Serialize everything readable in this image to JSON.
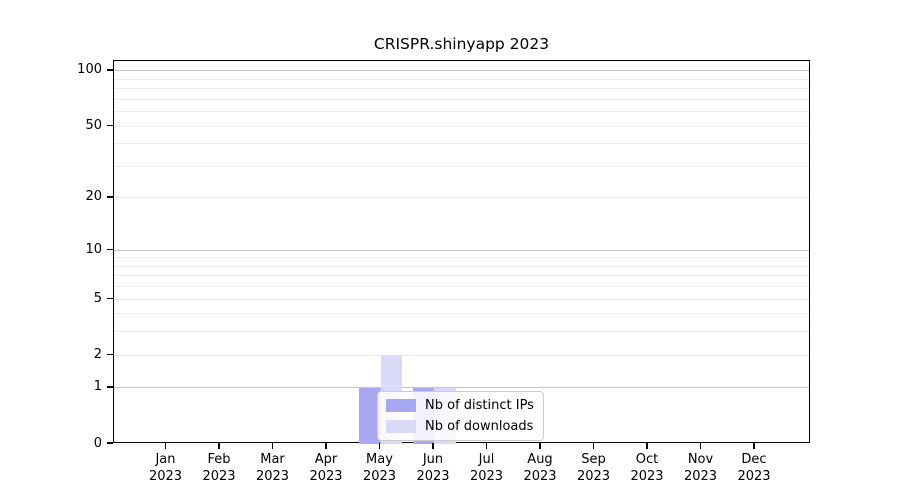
{
  "chart_data": {
    "type": "bar",
    "title": "CRISPR.shinyapp 2023",
    "categories": [
      {
        "month": "Jan",
        "year": "2023"
      },
      {
        "month": "Feb",
        "year": "2023"
      },
      {
        "month": "Mar",
        "year": "2023"
      },
      {
        "month": "Apr",
        "year": "2023"
      },
      {
        "month": "May",
        "year": "2023"
      },
      {
        "month": "Jun",
        "year": "2023"
      },
      {
        "month": "Jul",
        "year": "2023"
      },
      {
        "month": "Aug",
        "year": "2023"
      },
      {
        "month": "Sep",
        "year": "2023"
      },
      {
        "month": "Oct",
        "year": "2023"
      },
      {
        "month": "Nov",
        "year": "2023"
      },
      {
        "month": "Dec",
        "year": "2023"
      }
    ],
    "series": [
      {
        "name": "Nb of distinct IPs",
        "color": "#a8a8f2",
        "values": [
          0,
          0,
          0,
          0,
          1,
          1,
          0,
          0,
          0,
          0,
          0,
          0
        ]
      },
      {
        "name": "Nb of downloads",
        "color": "#d9d9f8",
        "values": [
          0,
          0,
          0,
          0,
          2,
          1,
          0,
          0,
          0,
          0,
          0,
          0
        ]
      }
    ],
    "xlabel": "",
    "ylabel": "",
    "y_axis": {
      "scale": "log1p",
      "ticks": [
        0,
        1,
        2,
        5,
        10,
        20,
        50,
        100
      ],
      "limit_top": 113.3,
      "major_gridlines": [
        1,
        10,
        100
      ],
      "minor_gridlines": [
        2,
        3,
        4,
        5,
        6,
        7,
        8,
        9,
        20,
        30,
        40,
        50,
        60,
        70,
        80,
        90
      ]
    },
    "grid": true,
    "legend": {
      "position": "inside-lower-center",
      "entries": [
        "Nb of distinct IPs",
        "Nb of downloads"
      ]
    },
    "colors": {
      "background": "#ffffff",
      "axis": "#000000",
      "text": "#000000",
      "major_grid": "#c6c6c6",
      "minor_grid": "#ececec",
      "legend_border": "#cccccc"
    }
  }
}
